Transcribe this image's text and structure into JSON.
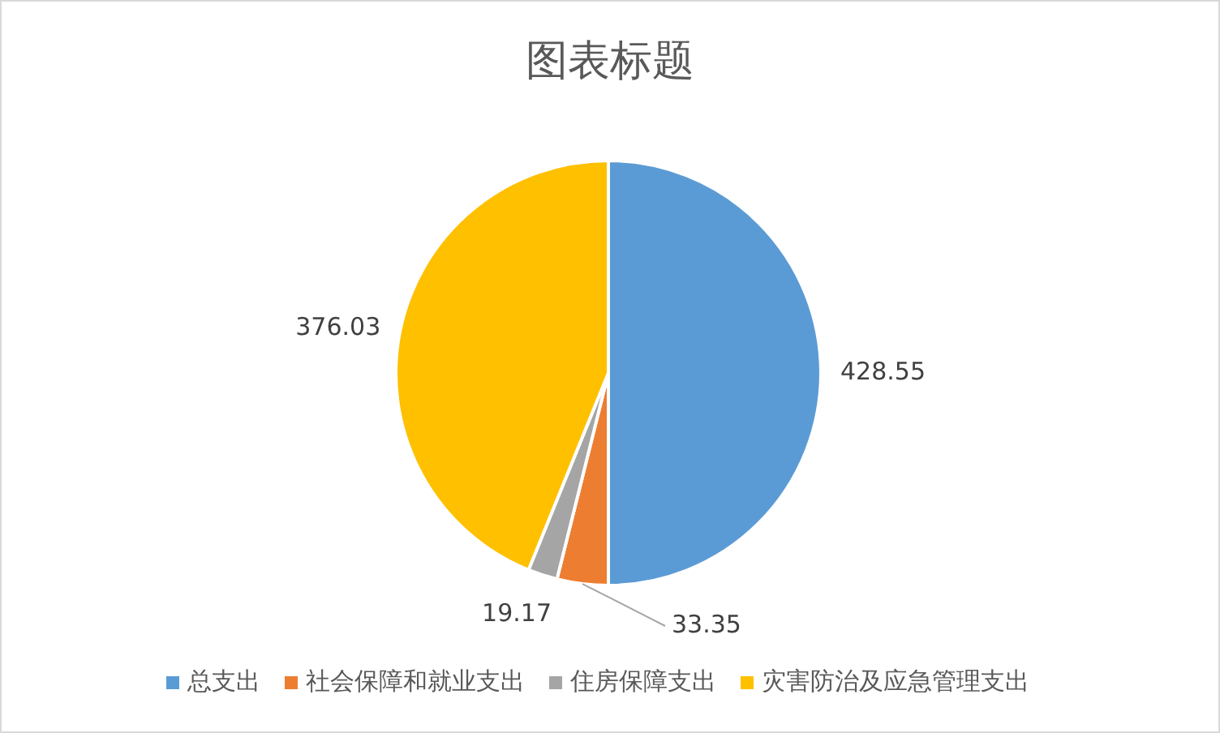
{
  "chart_data": {
    "type": "pie",
    "title": "图表标题",
    "categories": [
      "总支出",
      "社会保障和就业支出",
      "住房保障支出",
      "灾害防治及应急管理支出"
    ],
    "values": [
      428.55,
      33.35,
      19.17,
      376.03
    ],
    "colors": [
      "#5b9bd5",
      "#ed7d31",
      "#a5a5a5",
      "#ffc000"
    ],
    "data_labels": true,
    "legend": "bottom"
  }
}
